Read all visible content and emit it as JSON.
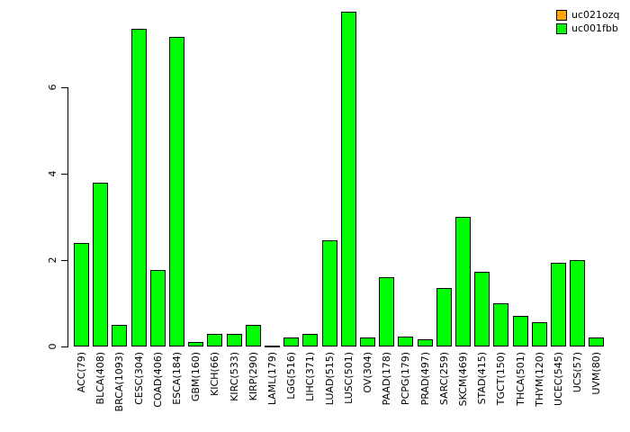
{
  "chart_data": {
    "type": "bar",
    "title": "",
    "xlabel": "",
    "ylabel": "",
    "categories": [
      "ACC(79)",
      "BLCA(408)",
      "BRCA(1093)",
      "CESC(304)",
      "COAD(406)",
      "ESCA(184)",
      "GBM(160)",
      "KICH(66)",
      "KIRC(533)",
      "KIRP(290)",
      "LAML(179)",
      "LGG(516)",
      "LIHC(371)",
      "LUAD(515)",
      "LUSC(501)",
      "OV(304)",
      "PAAD(178)",
      "PCPG(179)",
      "PRAD(497)",
      "SARC(259)",
      "SKCM(469)",
      "STAD(415)",
      "TGCT(150)",
      "THCA(501)",
      "THYM(120)",
      "UCEC(545)",
      "UCS(57)",
      "UVM(80)"
    ],
    "series": [
      {
        "name": "uc021ozq",
        "color": "#FFA500",
        "values": [
          0,
          0,
          0,
          0,
          0,
          0,
          0,
          0,
          0,
          0,
          0,
          0,
          0,
          0,
          0,
          0,
          0,
          0,
          0,
          0,
          0,
          0,
          0,
          0,
          0,
          0,
          0,
          0
        ]
      },
      {
        "name": "uc001fbb",
        "color": "#00FF00",
        "values": [
          2.4,
          3.8,
          0.5,
          7.35,
          1.77,
          7.17,
          0.1,
          0.3,
          0.3,
          0.5,
          0.02,
          0.2,
          0.3,
          2.46,
          7.75,
          0.2,
          1.6,
          0.22,
          0.17,
          1.35,
          3.0,
          1.72,
          1.0,
          0.7,
          0.56,
          1.93,
          2.0,
          0.2
        ]
      }
    ],
    "ylim": [
      0,
      7.8
    ],
    "yticks": [
      0,
      2,
      4,
      6
    ],
    "grid": false,
    "legend_position": "top-right",
    "bar_border_color": "#000000",
    "background_color": "#FFFFFF"
  }
}
